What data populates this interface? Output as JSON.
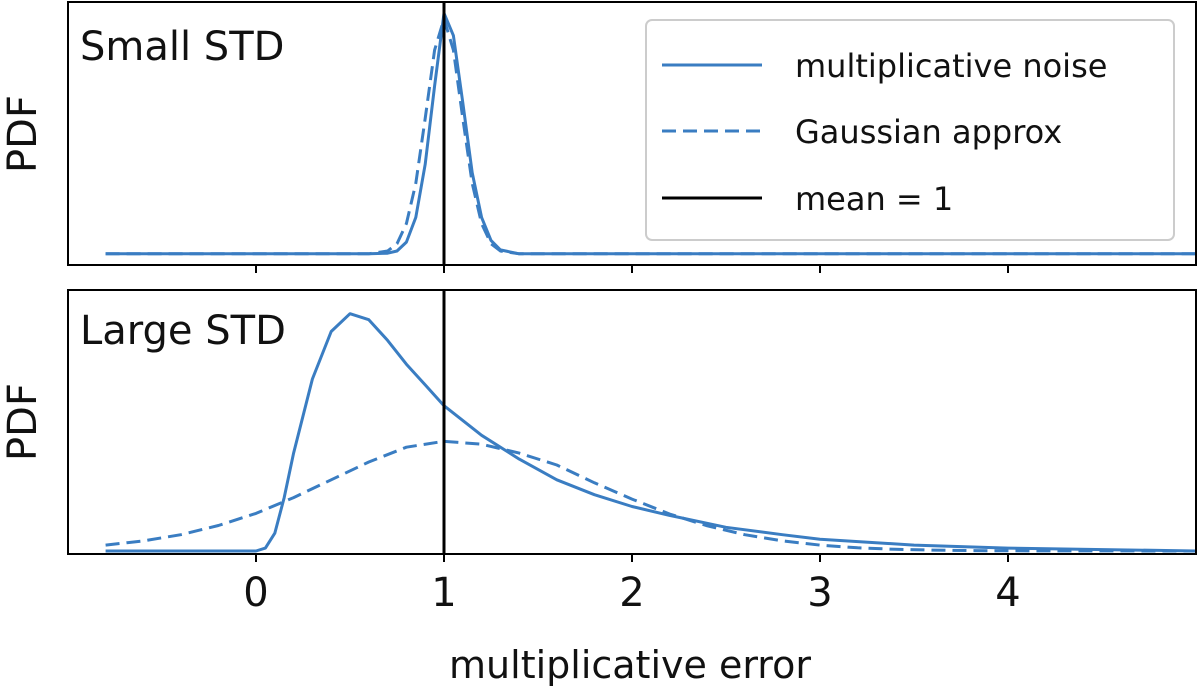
{
  "chart_data": {
    "type": "line",
    "xlabel": "multiplicative error",
    "xlim": [
      -1,
      5
    ],
    "xticks": [
      0,
      1,
      2,
      3,
      4
    ],
    "colors": {
      "series": "#3a7dc2",
      "mean_line": "#000000"
    },
    "legend": {
      "placement": "top-right of top panel",
      "entries": [
        {
          "label": "multiplicative noise",
          "style": "solid",
          "color": "#3a7dc2"
        },
        {
          "label": "Gaussian approx",
          "style": "dashed",
          "color": "#3a7dc2"
        },
        {
          "label": "mean = 1",
          "style": "solid",
          "color": "#000000"
        }
      ]
    },
    "panels": [
      {
        "title": "Small STD",
        "ylabel": "PDF",
        "ylim": [
          -0.2,
          4.5
        ],
        "vline": 1,
        "series": [
          {
            "name": "multiplicative noise",
            "style": "solid",
            "x": [
              -0.8,
              0.6,
              0.7,
              0.75,
              0.8,
              0.85,
              0.9,
              0.95,
              1.0,
              1.05,
              1.1,
              1.15,
              1.2,
              1.25,
              1.3,
              1.4,
              5.0
            ],
            "y": [
              0.0,
              0.0,
              0.01,
              0.05,
              0.21,
              0.65,
              1.6,
              3.0,
              4.3,
              3.9,
              2.7,
              1.45,
              0.65,
              0.24,
              0.07,
              0.0,
              0.0
            ]
          },
          {
            "name": "Gaussian approx",
            "style": "dashed",
            "x": [
              -0.8,
              0.6,
              0.7,
              0.75,
              0.8,
              0.85,
              0.9,
              0.95,
              1.0,
              1.05,
              1.1,
              1.15,
              1.2,
              1.25,
              1.3,
              1.4,
              5.0
            ],
            "y": [
              0.0,
              0.0,
              0.05,
              0.18,
              0.54,
              1.26,
              2.42,
              3.64,
              4.2,
              3.64,
              2.42,
              1.26,
              0.54,
              0.18,
              0.05,
              0.0,
              0.0
            ]
          }
        ]
      },
      {
        "title": "Large STD",
        "ylabel": "PDF",
        "ylim": [
          -0.01,
          0.88
        ],
        "vline": 1,
        "series": [
          {
            "name": "multiplicative noise",
            "style": "solid",
            "x": [
              -0.8,
              0.0,
              0.05,
              0.1,
              0.15,
              0.2,
              0.3,
              0.4,
              0.5,
              0.6,
              0.7,
              0.8,
              0.9,
              1.0,
              1.2,
              1.4,
              1.6,
              1.8,
              2.0,
              2.2,
              2.5,
              2.8,
              3.0,
              3.5,
              4.0,
              5.0
            ],
            "y": [
              0.0,
              0.0,
              0.01,
              0.06,
              0.18,
              0.33,
              0.58,
              0.74,
              0.8,
              0.78,
              0.71,
              0.63,
              0.56,
              0.49,
              0.39,
              0.31,
              0.24,
              0.19,
              0.15,
              0.12,
              0.08,
              0.055,
              0.04,
              0.02,
              0.01,
              0.0
            ]
          },
          {
            "name": "Gaussian approx",
            "style": "dashed",
            "x": [
              -0.8,
              -0.6,
              -0.4,
              -0.2,
              0.0,
              0.2,
              0.4,
              0.6,
              0.8,
              1.0,
              1.2,
              1.4,
              1.6,
              1.8,
              2.0,
              2.2,
              2.4,
              2.6,
              2.8,
              3.0,
              3.2,
              3.4,
              3.6,
              3.8,
              4.0,
              5.0
            ],
            "y": [
              0.02,
              0.034,
              0.055,
              0.086,
              0.127,
              0.18,
              0.24,
              0.3,
              0.35,
              0.37,
              0.36,
              0.33,
              0.29,
              0.23,
              0.175,
              0.125,
              0.085,
              0.055,
              0.034,
              0.02,
              0.011,
              0.006,
              0.003,
              0.0015,
              0.0008,
              0.0
            ]
          }
        ]
      }
    ]
  }
}
